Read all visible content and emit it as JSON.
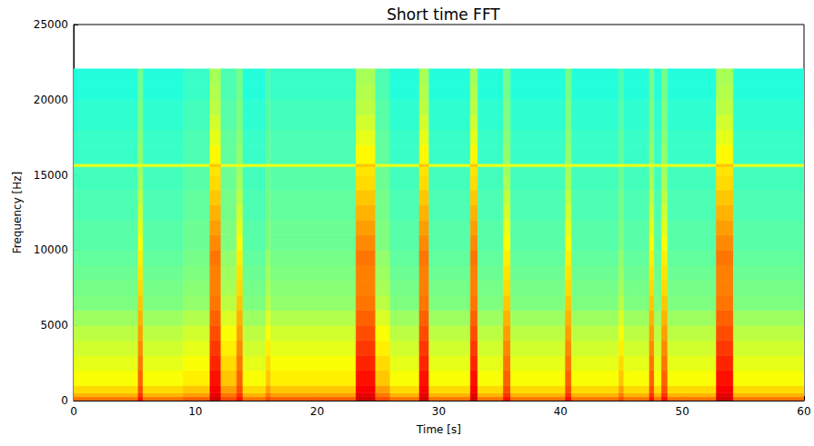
{
  "chart_data": {
    "type": "heatmap",
    "title": "Short time FFT",
    "xlabel": "Time [s]",
    "ylabel": "Frequency [Hz]",
    "xlim": [
      0,
      60
    ],
    "xticks": [
      0,
      10,
      20,
      30,
      40,
      50,
      60
    ],
    "ylim": [
      0,
      25000
    ],
    "yticks": [
      0,
      5000,
      10000,
      15000,
      20000,
      25000
    ],
    "grid": false,
    "color_range": [
      0,
      10
    ],
    "time_edges": [
      0,
      5.3,
      5.7,
      9,
      11.2,
      12.1,
      13.4,
      13.9,
      15.8,
      16.2,
      23.2,
      24.8,
      26,
      28.4,
      29.2,
      32.6,
      33.2,
      35.3,
      35.9,
      40.4,
      40.9,
      44.8,
      45.2,
      47.3,
      47.7,
      48.3,
      48.8,
      52.8,
      54.2,
      60
    ],
    "freq_edges": [
      0,
      250,
      500,
      1000,
      2000,
      3000,
      4000,
      5000,
      6000,
      7000,
      8000,
      9000,
      10000,
      11000,
      12000,
      13000,
      14000,
      15000,
      15550,
      15750,
      17000,
      18000,
      19000,
      20000,
      21000,
      22050
    ],
    "cells": [
      [
        7.6,
        7.0,
        6.6,
        6.2,
        6.0,
        5.8,
        5.6,
        5.3,
        5.0,
        4.9,
        4.8,
        4.7,
        4.6,
        4.6,
        4.5,
        4.5,
        4.4,
        4.4,
        6.0,
        4.3,
        4.3,
        4.2,
        4.2,
        4.1,
        4.1
      ],
      [
        8.6,
        8.3,
        8.0,
        7.8,
        7.6,
        7.4,
        7.2,
        7.0,
        6.8,
        6.6,
        6.5,
        6.4,
        6.2,
        6.0,
        5.8,
        5.6,
        5.4,
        5.3,
        6.0,
        5.2,
        5.1,
        5.0,
        5.0,
        4.9,
        4.9
      ],
      [
        7.6,
        7.0,
        6.6,
        6.2,
        6.0,
        5.8,
        5.6,
        5.3,
        5.0,
        4.9,
        4.8,
        4.7,
        4.6,
        4.6,
        4.5,
        4.5,
        4.4,
        4.4,
        6.0,
        4.3,
        4.3,
        4.2,
        4.2,
        4.1,
        4.1
      ],
      [
        7.8,
        7.2,
        6.8,
        6.4,
        6.2,
        6.0,
        5.8,
        5.5,
        5.2,
        5.1,
        5.0,
        4.9,
        4.8,
        4.8,
        4.7,
        4.7,
        4.6,
        4.6,
        6.0,
        4.5,
        4.5,
        4.4,
        4.4,
        4.3,
        4.3
      ],
      [
        9.2,
        9.0,
        8.8,
        8.6,
        8.4,
        8.2,
        8.0,
        7.8,
        7.6,
        7.5,
        7.5,
        7.6,
        7.4,
        7.2,
        7.0,
        6.8,
        6.6,
        6.5,
        6.8,
        6.3,
        6.0,
        5.8,
        5.6,
        5.5,
        5.4
      ],
      [
        8.0,
        7.6,
        7.2,
        6.8,
        6.6,
        6.4,
        6.2,
        5.9,
        5.6,
        5.4,
        5.3,
        5.2,
        5.0,
        5.0,
        4.9,
        4.9,
        4.8,
        4.8,
        6.0,
        4.7,
        4.7,
        4.6,
        4.6,
        4.5,
        4.5
      ],
      [
        8.6,
        8.3,
        8.0,
        7.8,
        7.6,
        7.4,
        7.2,
        7.0,
        6.8,
        6.6,
        6.5,
        6.4,
        6.2,
        6.0,
        5.8,
        5.6,
        5.4,
        5.3,
        6.0,
        5.2,
        5.1,
        5.0,
        5.0,
        4.9,
        4.9
      ],
      [
        7.6,
        7.0,
        6.6,
        6.2,
        6.0,
        5.8,
        5.6,
        5.3,
        5.0,
        4.9,
        4.8,
        4.7,
        4.6,
        4.6,
        4.5,
        4.5,
        4.4,
        4.4,
        6.0,
        4.3,
        4.3,
        4.2,
        4.2,
        4.1,
        4.1
      ],
      [
        8.0,
        7.6,
        7.2,
        6.8,
        6.6,
        6.4,
        6.2,
        5.9,
        5.6,
        5.4,
        5.3,
        5.2,
        5.0,
        5.0,
        4.9,
        4.9,
        4.8,
        4.8,
        6.0,
        4.7,
        4.7,
        4.6,
        4.6,
        4.5,
        4.5
      ],
      [
        7.8,
        7.2,
        6.8,
        6.4,
        6.2,
        6.0,
        5.8,
        5.5,
        5.2,
        5.1,
        5.0,
        4.9,
        4.8,
        4.8,
        4.7,
        4.7,
        4.6,
        4.6,
        6.0,
        4.5,
        4.5,
        4.4,
        4.4,
        4.3,
        4.3
      ],
      [
        9.2,
        9.0,
        8.8,
        8.6,
        8.4,
        8.2,
        8.0,
        7.8,
        7.6,
        7.5,
        7.5,
        7.6,
        7.4,
        7.2,
        7.0,
        6.8,
        6.6,
        6.5,
        6.8,
        6.3,
        6.0,
        5.8,
        5.6,
        5.5,
        5.4
      ],
      [
        8.0,
        7.6,
        7.2,
        6.8,
        6.6,
        6.4,
        6.2,
        5.9,
        5.6,
        5.4,
        5.3,
        5.2,
        5.0,
        5.0,
        4.9,
        4.9,
        4.8,
        4.8,
        6.0,
        4.7,
        4.7,
        4.6,
        4.6,
        4.5,
        4.5
      ],
      [
        7.6,
        7.0,
        6.6,
        6.2,
        6.0,
        5.8,
        5.6,
        5.3,
        5.0,
        4.9,
        4.8,
        4.7,
        4.6,
        4.6,
        4.5,
        4.5,
        4.4,
        4.4,
        6.0,
        4.3,
        4.3,
        4.2,
        4.2,
        4.1,
        4.1
      ],
      [
        9.2,
        9.0,
        8.8,
        8.6,
        8.4,
        8.2,
        8.0,
        7.8,
        7.6,
        7.5,
        7.5,
        7.6,
        7.4,
        7.2,
        7.0,
        6.8,
        6.6,
        6.5,
        6.8,
        6.3,
        6.0,
        5.8,
        5.6,
        5.5,
        5.4
      ],
      [
        7.6,
        7.0,
        6.6,
        6.2,
        6.0,
        5.8,
        5.6,
        5.3,
        5.0,
        4.9,
        4.8,
        4.7,
        4.6,
        4.6,
        4.5,
        4.5,
        4.4,
        4.4,
        6.0,
        4.3,
        4.3,
        4.2,
        4.2,
        4.1,
        4.1
      ],
      [
        9.2,
        9.0,
        8.8,
        8.6,
        8.4,
        8.2,
        8.0,
        7.8,
        7.6,
        7.5,
        7.5,
        7.6,
        7.4,
        7.2,
        7.0,
        6.8,
        6.6,
        6.5,
        6.8,
        6.3,
        6.0,
        5.8,
        5.6,
        5.5,
        5.4
      ],
      [
        7.6,
        7.0,
        6.6,
        6.2,
        6.0,
        5.8,
        5.6,
        5.3,
        5.0,
        4.9,
        4.8,
        4.7,
        4.6,
        4.6,
        4.5,
        4.5,
        4.4,
        4.4,
        6.0,
        4.3,
        4.3,
        4.2,
        4.2,
        4.1,
        4.1
      ],
      [
        8.6,
        8.3,
        8.0,
        7.8,
        7.6,
        7.4,
        7.2,
        7.0,
        6.8,
        6.6,
        6.5,
        6.4,
        6.2,
        6.0,
        5.8,
        5.6,
        5.4,
        5.3,
        6.0,
        5.2,
        5.1,
        5.0,
        5.0,
        4.9,
        4.9
      ],
      [
        7.6,
        7.0,
        6.6,
        6.2,
        6.0,
        5.8,
        5.6,
        5.3,
        5.0,
        4.9,
        4.8,
        4.7,
        4.6,
        4.6,
        4.5,
        4.5,
        4.4,
        4.4,
        6.0,
        4.3,
        4.3,
        4.2,
        4.2,
        4.1,
        4.1
      ],
      [
        8.6,
        8.3,
        8.0,
        7.8,
        7.6,
        7.4,
        7.2,
        7.0,
        6.8,
        6.6,
        6.5,
        6.4,
        6.2,
        6.0,
        5.8,
        5.6,
        5.4,
        5.3,
        6.0,
        5.2,
        5.1,
        5.0,
        5.0,
        4.9,
        4.9
      ],
      [
        7.6,
        7.0,
        6.6,
        6.2,
        6.0,
        5.8,
        5.6,
        5.3,
        5.0,
        4.9,
        4.8,
        4.7,
        4.6,
        4.6,
        4.5,
        4.5,
        4.4,
        4.4,
        6.0,
        4.3,
        4.3,
        4.2,
        4.2,
        4.1,
        4.1
      ],
      [
        8.0,
        7.6,
        7.2,
        6.8,
        6.6,
        6.4,
        6.2,
        5.9,
        5.6,
        5.4,
        5.3,
        5.2,
        5.0,
        5.0,
        4.9,
        4.9,
        4.8,
        4.8,
        6.0,
        4.7,
        4.7,
        4.6,
        4.6,
        4.5,
        4.5
      ],
      [
        7.6,
        7.0,
        6.6,
        6.2,
        6.0,
        5.8,
        5.6,
        5.3,
        5.0,
        4.9,
        4.8,
        4.7,
        4.6,
        4.6,
        4.5,
        4.5,
        4.4,
        4.4,
        6.0,
        4.3,
        4.3,
        4.2,
        4.2,
        4.1,
        4.1
      ],
      [
        8.6,
        8.3,
        8.0,
        7.8,
        7.6,
        7.4,
        7.2,
        7.0,
        6.8,
        6.6,
        6.5,
        6.4,
        6.2,
        6.0,
        5.8,
        5.6,
        5.4,
        5.3,
        6.0,
        5.2,
        5.1,
        5.0,
        5.0,
        4.9,
        4.9
      ],
      [
        7.6,
        7.0,
        6.6,
        6.2,
        6.0,
        5.8,
        5.6,
        5.3,
        5.0,
        4.9,
        4.8,
        4.7,
        4.6,
        4.6,
        4.5,
        4.5,
        4.4,
        4.4,
        6.0,
        4.3,
        4.3,
        4.2,
        4.2,
        4.1,
        4.1
      ],
      [
        8.6,
        8.3,
        8.0,
        7.8,
        7.6,
        7.4,
        7.2,
        7.0,
        6.8,
        6.6,
        6.5,
        6.4,
        6.2,
        6.0,
        5.8,
        5.6,
        5.4,
        5.3,
        6.0,
        5.2,
        5.1,
        5.0,
        5.0,
        4.9,
        4.9
      ],
      [
        7.6,
        7.0,
        6.6,
        6.2,
        6.0,
        5.8,
        5.6,
        5.3,
        5.0,
        4.9,
        4.8,
        4.7,
        4.6,
        4.6,
        4.5,
        4.5,
        4.4,
        4.4,
        6.0,
        4.3,
        4.3,
        4.2,
        4.2,
        4.1,
        4.1
      ],
      [
        9.2,
        9.0,
        8.8,
        8.6,
        8.4,
        8.2,
        8.0,
        7.8,
        7.6,
        7.5,
        7.5,
        7.6,
        7.4,
        7.2,
        7.0,
        6.8,
        6.6,
        6.5,
        6.8,
        6.3,
        6.0,
        5.8,
        5.6,
        5.5,
        5.4
      ],
      [
        7.6,
        7.0,
        6.6,
        6.2,
        6.0,
        5.8,
        5.6,
        5.3,
        5.0,
        4.9,
        4.8,
        4.7,
        4.6,
        4.6,
        4.5,
        4.5,
        4.4,
        4.4,
        6.0,
        4.3,
        4.3,
        4.2,
        4.2,
        4.1,
        4.1
      ]
    ]
  }
}
